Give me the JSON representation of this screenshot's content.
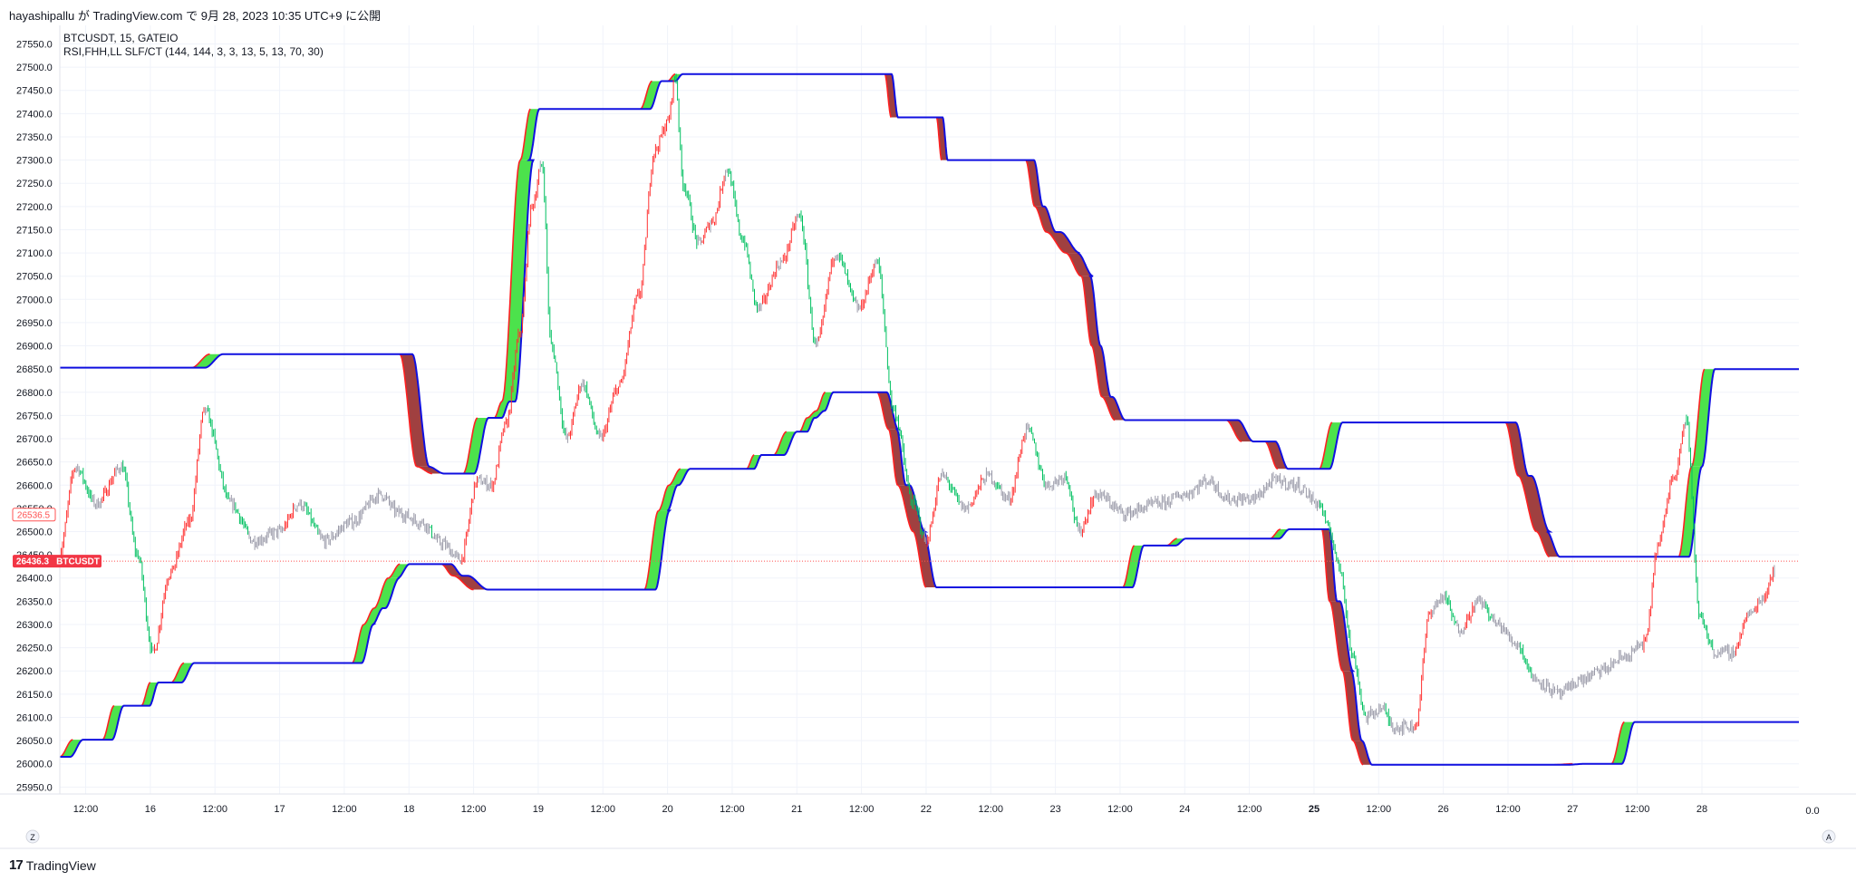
{
  "header": {
    "publish_line": "hayashipallu が TradingView.com で 9月 28, 2023 10:35 UTC+9 に公開"
  },
  "legend": {
    "symbol_line": "BTCUSDT, 15, GATEIO",
    "indicator_line": "RSI,FHH,LL SLF/CT (144, 144, 3, 3, 13, 5, 13, 70, 30)"
  },
  "badges": {
    "indicator_value": "26536.5",
    "last_price": "26436.3",
    "symbol": "BTCUSDT"
  },
  "footer": {
    "brand": "TradingView",
    "zero_label": "0.0",
    "z_label": "Z",
    "a_label": "A"
  },
  "colors": {
    "grid": "#f0f3fa",
    "band_up_fill": "#4ce24c",
    "band_down_fill": "#a04040",
    "band_edge_red": "#ff2020",
    "band_edge_blue": "#1010e0",
    "candle_up": "#00c060",
    "candle_down": "#ff3030",
    "candle_neutral": "#9a9aa8",
    "price_line": "#ff5252"
  },
  "chart_data": {
    "type": "line",
    "title": "",
    "xlabel": "",
    "ylabel": "",
    "ylim": [
      25935,
      27590
    ],
    "y_ticks": [
      25950,
      26000,
      26050,
      26100,
      26150,
      26200,
      26250,
      26300,
      26350,
      26400,
      26450,
      26500,
      26550,
      26600,
      26650,
      26700,
      26750,
      26800,
      26850,
      26900,
      26950,
      27000,
      27050,
      27100,
      27150,
      27200,
      27250,
      27300,
      27350,
      27400,
      27450,
      27500,
      27550
    ],
    "x_range": [
      15.3,
      28.75
    ],
    "x_ticks": [
      {
        "t": 15.5,
        "label": "12:00",
        "bold": false
      },
      {
        "t": 16.0,
        "label": "16",
        "bold": false
      },
      {
        "t": 16.5,
        "label": "12:00",
        "bold": false
      },
      {
        "t": 17.0,
        "label": "17",
        "bold": false
      },
      {
        "t": 17.5,
        "label": "12:00",
        "bold": false
      },
      {
        "t": 18.0,
        "label": "18",
        "bold": false
      },
      {
        "t": 18.5,
        "label": "12:00",
        "bold": false
      },
      {
        "t": 19.0,
        "label": "19",
        "bold": false
      },
      {
        "t": 19.5,
        "label": "12:00",
        "bold": false
      },
      {
        "t": 20.0,
        "label": "20",
        "bold": false
      },
      {
        "t": 20.5,
        "label": "12:00",
        "bold": false
      },
      {
        "t": 21.0,
        "label": "21",
        "bold": false
      },
      {
        "t": 21.5,
        "label": "12:00",
        "bold": false
      },
      {
        "t": 22.0,
        "label": "22",
        "bold": false
      },
      {
        "t": 22.5,
        "label": "12:00",
        "bold": false
      },
      {
        "t": 23.0,
        "label": "23",
        "bold": false
      },
      {
        "t": 23.5,
        "label": "12:00",
        "bold": false
      },
      {
        "t": 24.0,
        "label": "24",
        "bold": false
      },
      {
        "t": 24.5,
        "label": "12:00",
        "bold": false
      },
      {
        "t": 25.0,
        "label": "25",
        "bold": true
      },
      {
        "t": 25.5,
        "label": "12:00",
        "bold": false
      },
      {
        "t": 26.0,
        "label": "26",
        "bold": false
      },
      {
        "t": 26.5,
        "label": "12:00",
        "bold": false
      },
      {
        "t": 27.0,
        "label": "27",
        "bold": false
      },
      {
        "t": 27.5,
        "label": "12:00",
        "bold": false
      },
      {
        "t": 28.0,
        "label": "28",
        "bold": false
      }
    ],
    "last_price": 26436.3,
    "indicator_value": 26536.5,
    "upper_band": [
      [
        15.3,
        26853
      ],
      [
        16.32,
        26853
      ],
      [
        16.46,
        26882
      ],
      [
        17.93,
        26882
      ],
      [
        18.06,
        26640
      ],
      [
        18.18,
        26625
      ],
      [
        18.42,
        26625
      ],
      [
        18.53,
        26745
      ],
      [
        18.66,
        26745
      ],
      [
        18.72,
        26780
      ],
      [
        18.86,
        27300
      ],
      [
        18.94,
        27410
      ],
      [
        19.79,
        27410
      ],
      [
        19.88,
        27470
      ],
      [
        20.0,
        27470
      ],
      [
        20.06,
        27485
      ],
      [
        21.68,
        27485
      ],
      [
        21.73,
        27392
      ],
      [
        22.08,
        27392
      ],
      [
        22.12,
        27300
      ],
      [
        22.77,
        27300
      ],
      [
        22.84,
        27200
      ],
      [
        22.93,
        27145
      ],
      [
        23.08,
        27100
      ],
      [
        23.2,
        27050
      ],
      [
        23.28,
        26900
      ],
      [
        23.36,
        26790
      ],
      [
        23.46,
        26740
      ],
      [
        24.32,
        26740
      ],
      [
        24.44,
        26694
      ],
      [
        24.62,
        26694
      ],
      [
        24.72,
        26635
      ],
      [
        25.04,
        26635
      ],
      [
        25.14,
        26735
      ],
      [
        26.48,
        26735
      ],
      [
        26.58,
        26620
      ],
      [
        26.72,
        26500
      ],
      [
        26.82,
        26446
      ],
      [
        27.82,
        26446
      ],
      [
        27.92,
        26640
      ],
      [
        28.02,
        26850
      ],
      [
        28.75,
        26850
      ]
    ],
    "lower_band": [
      [
        15.3,
        26015
      ],
      [
        15.4,
        26052
      ],
      [
        15.63,
        26052
      ],
      [
        15.72,
        26125
      ],
      [
        15.93,
        26125
      ],
      [
        16.0,
        26175
      ],
      [
        16.16,
        26175
      ],
      [
        16.26,
        26217
      ],
      [
        17.56,
        26217
      ],
      [
        17.65,
        26300
      ],
      [
        17.73,
        26335
      ],
      [
        17.84,
        26400
      ],
      [
        17.93,
        26430
      ],
      [
        18.25,
        26430
      ],
      [
        18.34,
        26405
      ],
      [
        18.5,
        26375
      ],
      [
        19.82,
        26375
      ],
      [
        19.93,
        26545
      ],
      [
        20.01,
        26600
      ],
      [
        20.1,
        26635
      ],
      [
        20.61,
        26635
      ],
      [
        20.67,
        26665
      ],
      [
        20.82,
        26665
      ],
      [
        20.92,
        26715
      ],
      [
        21.02,
        26715
      ],
      [
        21.08,
        26745
      ],
      [
        21.15,
        26760
      ],
      [
        21.22,
        26800
      ],
      [
        21.4,
        26800
      ],
      [
        21.62,
        26800
      ],
      [
        21.71,
        26720
      ],
      [
        21.78,
        26600
      ],
      [
        21.9,
        26500
      ],
      [
        22.0,
        26380
      ],
      [
        23.52,
        26380
      ],
      [
        23.61,
        26470
      ],
      [
        23.86,
        26470
      ],
      [
        23.94,
        26485
      ],
      [
        24.66,
        26485
      ],
      [
        24.74,
        26505
      ],
      [
        25.06,
        26505
      ],
      [
        25.12,
        26350
      ],
      [
        25.22,
        26200
      ],
      [
        25.3,
        26050
      ],
      [
        25.38,
        25998
      ],
      [
        26.86,
        25998
      ],
      [
        27.0,
        26000
      ],
      [
        27.3,
        26000
      ],
      [
        27.4,
        26090
      ],
      [
        28.75,
        26090
      ]
    ],
    "dip_band": [
      [
        27.82,
        26446
      ],
      [
        27.88,
        26420
      ],
      [
        27.95,
        26440
      ],
      [
        28.02,
        26850
      ]
    ],
    "price_anchors": [
      [
        15.3,
        26460
      ],
      [
        15.42,
        26640
      ],
      [
        15.58,
        26560
      ],
      [
        15.78,
        26640
      ],
      [
        15.9,
        26450
      ],
      [
        16.02,
        26240
      ],
      [
        16.15,
        26410
      ],
      [
        16.3,
        26520
      ],
      [
        16.42,
        26760
      ],
      [
        16.62,
        26560
      ],
      [
        16.8,
        26480
      ],
      [
        17.0,
        26500
      ],
      [
        17.15,
        26560
      ],
      [
        17.35,
        26480
      ],
      [
        17.55,
        26520
      ],
      [
        17.78,
        26580
      ],
      [
        17.92,
        26540
      ],
      [
        18.1,
        26520
      ],
      [
        18.25,
        26475
      ],
      [
        18.4,
        26440
      ],
      [
        18.53,
        26610
      ],
      [
        18.64,
        26600
      ],
      [
        18.75,
        26730
      ],
      [
        18.86,
        26930
      ],
      [
        18.95,
        27200
      ],
      [
        19.03,
        27290
      ],
      [
        19.1,
        26900
      ],
      [
        19.22,
        26700
      ],
      [
        19.34,
        26820
      ],
      [
        19.48,
        26700
      ],
      [
        19.62,
        26810
      ],
      [
        19.78,
        27010
      ],
      [
        19.9,
        27320
      ],
      [
        20.0,
        27380
      ],
      [
        20.06,
        27480
      ],
      [
        20.12,
        27250
      ],
      [
        20.24,
        27120
      ],
      [
        20.35,
        27170
      ],
      [
        20.46,
        27280
      ],
      [
        20.58,
        27130
      ],
      [
        20.7,
        26980
      ],
      [
        20.88,
        27080
      ],
      [
        21.02,
        27180
      ],
      [
        21.15,
        26900
      ],
      [
        21.3,
        27100
      ],
      [
        21.48,
        26980
      ],
      [
        21.62,
        27080
      ],
      [
        21.75,
        26760
      ],
      [
        21.9,
        26560
      ],
      [
        22.0,
        26480
      ],
      [
        22.12,
        26620
      ],
      [
        22.3,
        26550
      ],
      [
        22.48,
        26620
      ],
      [
        22.64,
        26570
      ],
      [
        22.78,
        26720
      ],
      [
        22.94,
        26600
      ],
      [
        23.08,
        26620
      ],
      [
        23.18,
        26500
      ],
      [
        23.32,
        26580
      ],
      [
        23.54,
        26540
      ],
      [
        23.8,
        26560
      ],
      [
        24.0,
        26580
      ],
      [
        24.18,
        26610
      ],
      [
        24.34,
        26570
      ],
      [
        24.52,
        26570
      ],
      [
        24.7,
        26610
      ],
      [
        24.86,
        26600
      ],
      [
        25.04,
        26560
      ],
      [
        25.12,
        26500
      ],
      [
        25.2,
        26420
      ],
      [
        25.3,
        26230
      ],
      [
        25.4,
        26100
      ],
      [
        25.52,
        26120
      ],
      [
        25.62,
        26080
      ],
      [
        25.78,
        26080
      ],
      [
        25.9,
        26330
      ],
      [
        26.0,
        26360
      ],
      [
        26.12,
        26290
      ],
      [
        26.28,
        26350
      ],
      [
        26.42,
        26300
      ],
      [
        26.56,
        26260
      ],
      [
        26.72,
        26180
      ],
      [
        26.9,
        26150
      ],
      [
        27.06,
        26180
      ],
      [
        27.22,
        26200
      ],
      [
        27.4,
        26230
      ],
      [
        27.56,
        26260
      ],
      [
        27.66,
        26470
      ],
      [
        27.78,
        26620
      ],
      [
        27.88,
        26740
      ],
      [
        27.98,
        26320
      ],
      [
        28.1,
        26240
      ],
      [
        28.24,
        26240
      ],
      [
        28.36,
        26320
      ],
      [
        28.48,
        26360
      ],
      [
        28.56,
        26420
      ]
    ]
  }
}
